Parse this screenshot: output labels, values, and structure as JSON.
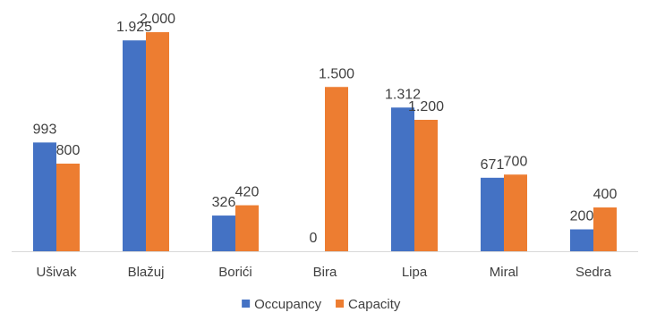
{
  "chart_data": {
    "type": "bar",
    "title": "",
    "xlabel": "",
    "ylabel": "",
    "categories": [
      "Ušivak",
      "Blažuj",
      "Borići",
      "Bira",
      "Lipa",
      "Miral",
      "Sedra"
    ],
    "series": [
      {
        "name": "Occupancy",
        "color": "#4472C4",
        "values": [
          993,
          1925,
          326,
          0,
          1312,
          671,
          200
        ],
        "labels": [
          "993",
          "1.925",
          "326",
          "0",
          "1.312",
          "671",
          "200"
        ]
      },
      {
        "name": "Capacity",
        "color": "#ED7D31",
        "values": [
          800,
          2000,
          420,
          1500,
          1200,
          700,
          400
        ],
        "labels": [
          "800",
          "2.000",
          "420",
          "1.500",
          "1.200",
          "700",
          "400"
        ]
      }
    ],
    "ylim": [
      0,
      2000
    ],
    "grid": false,
    "legend": "bottom-center",
    "axis_color": "#d9d9d9",
    "label_color": "#404040"
  }
}
